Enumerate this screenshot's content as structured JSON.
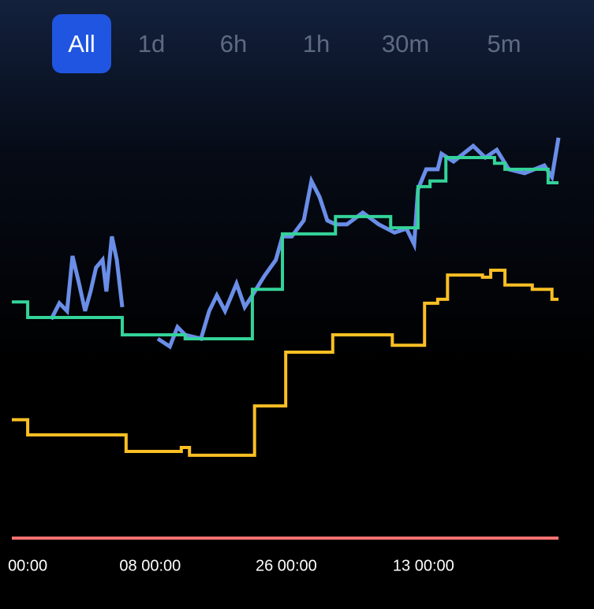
{
  "tabs": [
    "All",
    "1d",
    "6h",
    "1h",
    "30m",
    "5m"
  ],
  "selected_tab": 0,
  "chart_data": {
    "type": "line",
    "xlim": [
      0,
      100
    ],
    "xticks": [
      {
        "value": 2.9,
        "label": "00:00"
      },
      {
        "value": 25.3,
        "label": "08 00:00"
      },
      {
        "value": 50.2,
        "label": "26 00:00"
      },
      {
        "value": 75.3,
        "label": "13 00:00"
      }
    ],
    "ylim": [
      0,
      100
    ],
    "series": [
      {
        "color": "#f87171",
        "x": [
          0,
          100
        ],
        "values": [
          3.1,
          3.1
        ]
      },
      {
        "color": "#fbbf24",
        "x": [
          0,
          2.9,
          2.9,
          20.9,
          20.9,
          31,
          31,
          32.5,
          32.5,
          44.4,
          44.4,
          50.1,
          50.1,
          58.7,
          58.7,
          69.6,
          69.6,
          75.5,
          75.5,
          77.9,
          77.9,
          79.7,
          79.7,
          86.1,
          86.1,
          87.6,
          87.6,
          90.2,
          90.2,
          95.2,
          95.2,
          98.8,
          98.8,
          100
        ],
        "values": [
          30.4,
          30.4,
          26.9,
          26.9,
          23.1,
          23.1,
          24,
          24,
          22.2,
          22.2,
          33.6,
          33.6,
          46,
          46,
          50,
          50,
          47.6,
          47.6,
          57.3,
          57.3,
          58.2,
          58.2,
          63.8,
          63.8,
          63.3,
          63.3,
          64.9,
          64.9,
          61.5,
          61.5,
          60.5,
          60.5,
          58.2,
          58.2
        ]
      },
      {
        "color": "#6a8ee8",
        "x": [
          7.2,
          8.7,
          10.1,
          11.1,
          12.3,
          13.4,
          14.4,
          15.4,
          16.6,
          17.3,
          18.3,
          19.2,
          20.2,
          22,
          26.7,
          28.9,
          30.3,
          31.7,
          34.6,
          36.1,
          37.5,
          39,
          41.1,
          42.6,
          44,
          46.2,
          48.3,
          49.5,
          51.2,
          53.4,
          54.8,
          56.3,
          57.7,
          59.2,
          61.3,
          64.2,
          67.1,
          70,
          72.2,
          73.6,
          74.3,
          75.8,
          77.9,
          78.6,
          80.8,
          84.4,
          86.6,
          88.7,
          90.9,
          93.8,
          97.4,
          98.8,
          100
        ],
        "values": [
          53.6,
          57.3,
          55.5,
          68.2,
          61.8,
          55.5,
          60,
          65.5,
          67.3,
          60,
          72.7,
          67.3,
          56.4,
          null,
          49.1,
          47.3,
          51.8,
          50,
          49.1,
          55.5,
          59.1,
          55.5,
          61.8,
          56.4,
          59.1,
          63.6,
          67.3,
          72.7,
          72.7,
          76.4,
          85.5,
          81.8,
          76.4,
          75.5,
          75.5,
          78.2,
          75.5,
          73.6,
          74.5,
          70.9,
          83.6,
          88.2,
          88.2,
          91.8,
          90,
          93.6,
          90.9,
          92.7,
          88.2,
          87.3,
          89.1,
          86.4,
          95.5
        ]
      },
      {
        "color": "#34d399",
        "x": [
          0,
          2.9,
          2.9,
          20.2,
          20.2,
          31.7,
          31.7,
          44,
          44,
          49.5,
          49.5,
          59.2,
          59.2,
          69.3,
          69.3,
          74.3,
          74.3,
          76.5,
          76.5,
          79.4,
          79.4,
          88.3,
          88.3,
          90.2,
          90.2,
          98.1,
          98.1,
          100
        ],
        "values": [
          57.6,
          57.6,
          54,
          54,
          50,
          50,
          49.1,
          49.1,
          60.5,
          60.5,
          73.3,
          73.3,
          77.3,
          77.3,
          74.7,
          74.7,
          84.2,
          84.2,
          85.5,
          85.5,
          90.9,
          90.9,
          89.6,
          89.6,
          88.2,
          88.2,
          85.1,
          85.1
        ]
      }
    ]
  }
}
